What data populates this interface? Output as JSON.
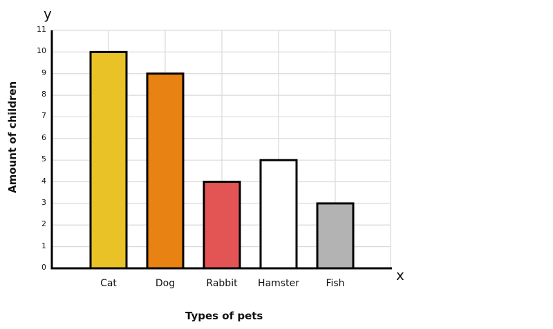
{
  "chart_data": {
    "type": "bar",
    "title": "",
    "categories": [
      "Cat",
      "Dog",
      "Rabbit",
      "Hamster",
      "Fish"
    ],
    "values": [
      10,
      9,
      4,
      5,
      3
    ],
    "colors": [
      "#e8c227",
      "#e88212",
      "#e35455",
      "#ffffff",
      "#b3b3b3"
    ],
    "xlabel": "Types of pets",
    "ylabel": "Amount of children",
    "x_axis_letter": "x",
    "y_axis_letter": "y",
    "ylim": [
      0,
      11
    ],
    "yticks": [
      0,
      1,
      2,
      3,
      4,
      5,
      6,
      7,
      8,
      9,
      10,
      11
    ],
    "grid": true,
    "legend": null
  }
}
